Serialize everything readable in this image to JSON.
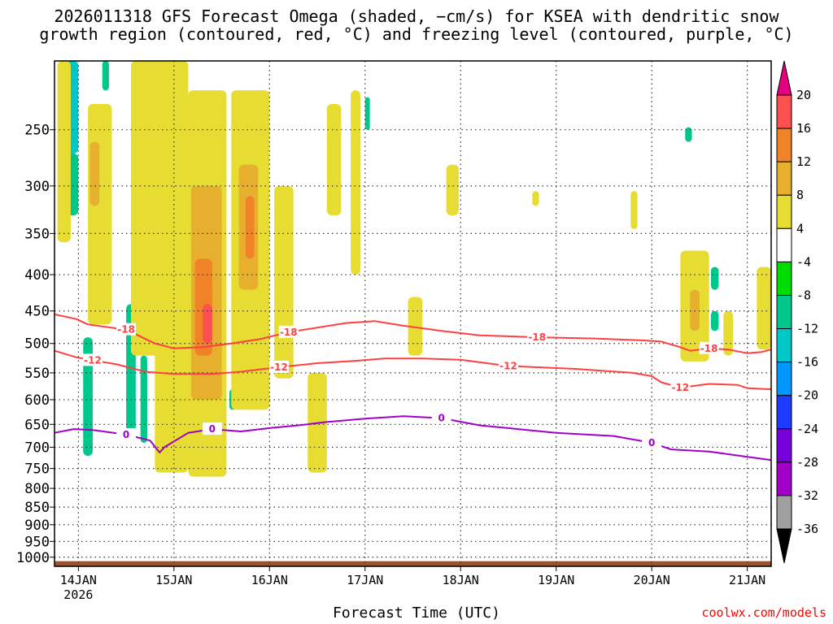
{
  "chart_data": {
    "type": "heatmap",
    "title": "2026011318 GFS Forecast Omega (shaded, −cm/s) for KSEA with dendritic snow",
    "subtitle": "growth region (contoured, red, °C) and freezing level (contoured, purple, °C)",
    "xlabel": "Forecast Time (UTC)",
    "ylabel": "",
    "credit": "coolwx.com/models",
    "x_ticks": [
      "14JAN",
      "15JAN",
      "16JAN",
      "17JAN",
      "18JAN",
      "19JAN",
      "20JAN",
      "21JAN"
    ],
    "x_year": "2026",
    "xlim_days": [
      13.75,
      21.25
    ],
    "y_ticks": [
      250,
      300,
      350,
      400,
      450,
      500,
      550,
      600,
      650,
      700,
      750,
      800,
      850,
      900,
      950,
      1000
    ],
    "ylim_hpa": [
      200,
      1030
    ],
    "y_scale": "log-pressure",
    "grid": true,
    "colorbar": {
      "labels": [
        20,
        16,
        12,
        8,
        4,
        -4,
        -8,
        -12,
        -16,
        -20,
        -24,
        -28,
        -32,
        -36
      ],
      "colors": [
        "#ff5050",
        "#f08228",
        "#e6af2d",
        "#e6dc32",
        "#ffffff",
        "#00dc00",
        "#00c88c",
        "#00c8c8",
        "#0096ff",
        "#1e3cff",
        "#7800dc",
        "#a000c8",
        "#a0a0a0"
      ],
      "over_color": "#e6007f",
      "under_color": "#000000"
    },
    "series": [
      {
        "name": "-18",
        "color": "#ff4040",
        "points": [
          [
            13.75,
            455
          ],
          [
            13.98,
            462
          ],
          [
            14.1,
            470
          ],
          [
            14.5,
            478
          ],
          [
            14.8,
            500
          ],
          [
            15.0,
            508
          ],
          [
            15.3,
            506
          ],
          [
            15.6,
            500
          ],
          [
            15.9,
            493
          ],
          [
            16.2,
            482
          ],
          [
            16.5,
            475
          ],
          [
            16.8,
            468
          ],
          [
            17.1,
            465
          ],
          [
            17.4,
            472
          ],
          [
            17.8,
            480
          ],
          [
            18.2,
            487
          ],
          [
            18.8,
            490
          ],
          [
            19.4,
            492
          ],
          [
            19.9,
            495
          ],
          [
            20.1,
            497
          ],
          [
            20.3,
            506
          ],
          [
            20.4,
            512
          ],
          [
            20.6,
            508
          ],
          [
            20.8,
            510
          ],
          [
            21.0,
            516
          ],
          [
            21.15,
            514
          ],
          [
            21.25,
            510
          ]
        ]
      },
      {
        "name": "-12",
        "color": "#ff4040",
        "points": [
          [
            13.75,
            512
          ],
          [
            13.98,
            523
          ],
          [
            14.15,
            528
          ],
          [
            14.4,
            535
          ],
          [
            14.7,
            548
          ],
          [
            15.0,
            552
          ],
          [
            15.4,
            552
          ],
          [
            15.7,
            548
          ],
          [
            16.1,
            540
          ],
          [
            16.5,
            533
          ],
          [
            16.9,
            529
          ],
          [
            17.2,
            525
          ],
          [
            17.6,
            525
          ],
          [
            18.0,
            527
          ],
          [
            18.5,
            538
          ],
          [
            19.2,
            543
          ],
          [
            19.8,
            550
          ],
          [
            20.0,
            556
          ],
          [
            20.1,
            567
          ],
          [
            20.3,
            577
          ],
          [
            20.6,
            570
          ],
          [
            20.9,
            572
          ],
          [
            21.0,
            578
          ],
          [
            21.25,
            580
          ]
        ]
      },
      {
        "name": "0",
        "color": "#a000c8",
        "points": [
          [
            13.75,
            668
          ],
          [
            13.95,
            660
          ],
          [
            14.15,
            662
          ],
          [
            14.5,
            672
          ],
          [
            14.75,
            685
          ],
          [
            14.85,
            712
          ],
          [
            14.9,
            700
          ],
          [
            15.15,
            668
          ],
          [
            15.4,
            660
          ],
          [
            15.7,
            665
          ],
          [
            16.0,
            658
          ],
          [
            16.3,
            652
          ],
          [
            16.6,
            645
          ],
          [
            17.0,
            638
          ],
          [
            17.4,
            633
          ],
          [
            17.8,
            637
          ],
          [
            18.2,
            652
          ],
          [
            18.6,
            660
          ],
          [
            19.0,
            668
          ],
          [
            19.6,
            675
          ],
          [
            20.0,
            690
          ],
          [
            20.2,
            705
          ],
          [
            20.6,
            710
          ],
          [
            21.0,
            722
          ],
          [
            21.25,
            730
          ]
        ]
      }
    ],
    "omega_cells": [
      {
        "t0": 13.85,
        "t1": 14.0,
        "p0": 200,
        "p1": 270,
        "v": -12
      },
      {
        "t0": 13.85,
        "t1": 14.0,
        "p0": 270,
        "p1": 330,
        "v": -8
      },
      {
        "t0": 14.25,
        "t1": 14.32,
        "p0": 200,
        "p1": 220,
        "v": -8
      },
      {
        "t0": 14.05,
        "t1": 14.15,
        "p0": 490,
        "p1": 720,
        "v": -8
      },
      {
        "t0": 14.5,
        "t1": 14.6,
        "p0": 440,
        "p1": 680,
        "v": -8
      },
      {
        "t0": 14.65,
        "t1": 14.72,
        "p0": 520,
        "p1": 690,
        "v": -8
      },
      {
        "t0": 15.58,
        "t1": 15.65,
        "p0": 580,
        "p1": 620,
        "v": -8
      },
      {
        "t0": 17.0,
        "t1": 17.05,
        "p0": 225,
        "p1": 250,
        "v": -8
      },
      {
        "t0": 20.35,
        "t1": 20.42,
        "p0": 248,
        "p1": 260,
        "v": -8
      },
      {
        "t0": 20.62,
        "t1": 20.7,
        "p0": 390,
        "p1": 420,
        "v": -8
      },
      {
        "t0": 20.62,
        "t1": 20.7,
        "p0": 450,
        "p1": 480,
        "v": -8
      },
      {
        "t0": 13.78,
        "t1": 13.92,
        "p0": 200,
        "p1": 360,
        "v": 4
      },
      {
        "t0": 14.1,
        "t1": 14.35,
        "p0": 230,
        "p1": 470,
        "v": 4
      },
      {
        "t0": 14.12,
        "t1": 14.22,
        "p0": 260,
        "p1": 320,
        "v": 8
      },
      {
        "t0": 14.55,
        "t1": 14.95,
        "p0": 200,
        "p1": 520,
        "v": 4
      },
      {
        "t0": 14.8,
        "t1": 15.15,
        "p0": 200,
        "p1": 760,
        "v": 4
      },
      {
        "t0": 15.15,
        "t1": 15.55,
        "p0": 220,
        "p1": 770,
        "v": 4
      },
      {
        "t0": 15.18,
        "t1": 15.5,
        "p0": 300,
        "p1": 600,
        "v": 8
      },
      {
        "t0": 15.22,
        "t1": 15.4,
        "p0": 380,
        "p1": 520,
        "v": 12
      },
      {
        "t0": 15.3,
        "t1": 15.4,
        "p0": 440,
        "p1": 500,
        "v": 16
      },
      {
        "t0": 15.6,
        "t1": 16.0,
        "p0": 220,
        "p1": 620,
        "v": 4
      },
      {
        "t0": 15.68,
        "t1": 15.88,
        "p0": 280,
        "p1": 420,
        "v": 8
      },
      {
        "t0": 15.75,
        "t1": 15.84,
        "p0": 310,
        "p1": 380,
        "v": 12
      },
      {
        "t0": 16.05,
        "t1": 16.25,
        "p0": 300,
        "p1": 560,
        "v": 4
      },
      {
        "t0": 16.4,
        "t1": 16.6,
        "p0": 550,
        "p1": 760,
        "v": 4
      },
      {
        "t0": 16.6,
        "t1": 16.75,
        "p0": 230,
        "p1": 330,
        "v": 4
      },
      {
        "t0": 16.85,
        "t1": 16.95,
        "p0": 220,
        "p1": 400,
        "v": 4
      },
      {
        "t0": 17.45,
        "t1": 17.6,
        "p0": 430,
        "p1": 520,
        "v": 4
      },
      {
        "t0": 17.85,
        "t1": 17.98,
        "p0": 280,
        "p1": 330,
        "v": 4
      },
      {
        "t0": 18.75,
        "t1": 18.82,
        "p0": 305,
        "p1": 320,
        "v": 4
      },
      {
        "t0": 19.78,
        "t1": 19.85,
        "p0": 305,
        "p1": 345,
        "v": 4
      },
      {
        "t0": 20.3,
        "t1": 20.6,
        "p0": 370,
        "p1": 530,
        "v": 4
      },
      {
        "t0": 20.4,
        "t1": 20.5,
        "p0": 420,
        "p1": 480,
        "v": 8
      },
      {
        "t0": 20.75,
        "t1": 20.85,
        "p0": 450,
        "p1": 520,
        "v": 4
      },
      {
        "t0": 21.1,
        "t1": 21.25,
        "p0": 390,
        "p1": 510,
        "v": 4
      }
    ]
  }
}
